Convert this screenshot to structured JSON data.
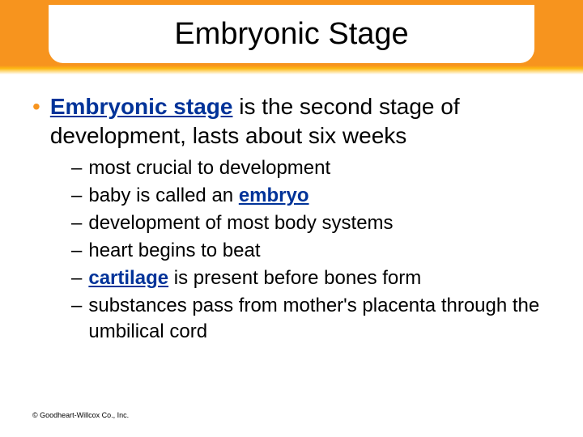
{
  "slide": {
    "title": "Embryonic Stage",
    "background_color": "#ffffff",
    "accent_color": "#f7941e",
    "link_color": "#003399",
    "title_fontsize": 38,
    "body_fontsize": 28,
    "sub_fontsize": 24
  },
  "main": {
    "term": "Embryonic stage",
    "rest": " is the second stage of development, lasts about six weeks"
  },
  "subs": [
    {
      "pre": "most crucial to development",
      "term": "",
      "post": ""
    },
    {
      "pre": "baby is called an ",
      "term": "embryo",
      "post": ""
    },
    {
      "pre": "development of most body systems",
      "term": "",
      "post": ""
    },
    {
      "pre": "heart begins to beat",
      "term": "",
      "post": ""
    },
    {
      "pre": "",
      "term": "cartilage",
      "post": " is present before bones form"
    },
    {
      "pre": "substances pass from mother's placenta through the umbilical cord",
      "term": "",
      "post": ""
    }
  ],
  "copyright": "© Goodheart-Willcox Co., Inc."
}
